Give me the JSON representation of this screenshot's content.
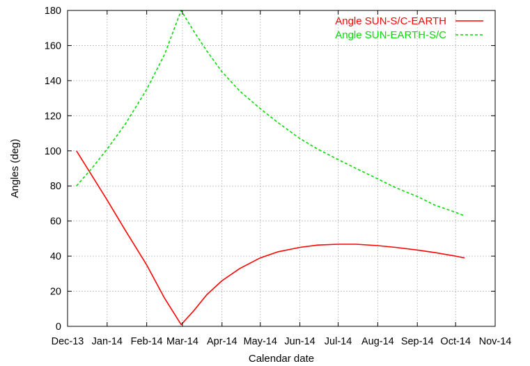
{
  "chart_data": {
    "type": "line",
    "xlabel": "Calendar date",
    "ylabel": "Angles (deg)",
    "x_ticks": [
      "Dec-13",
      "Jan-14",
      "Feb-14",
      "Mar-14",
      "Apr-14",
      "May-14",
      "Jun-14",
      "Jul-14",
      "Aug-14",
      "Sep-14",
      "Oct-14",
      "Nov-14"
    ],
    "xlim": [
      "2013-12-01",
      "2014-11-01"
    ],
    "ylim": [
      0,
      180
    ],
    "y_ticks": [
      0,
      20,
      40,
      60,
      80,
      100,
      120,
      140,
      160,
      180
    ],
    "grid": true,
    "legend_position": "top-right",
    "series": [
      {
        "name": "Angle SUN-S/C-EARTH",
        "color": "#ff0000",
        "line_style": "solid",
        "points": [
          [
            "2013-12-08",
            100
          ],
          [
            "2013-12-20",
            86
          ],
          [
            "2014-01-01",
            72
          ],
          [
            "2014-01-15",
            55
          ],
          [
            "2014-02-01",
            35
          ],
          [
            "2014-02-15",
            16
          ],
          [
            "2014-02-28",
            1
          ],
          [
            "2014-03-10",
            9
          ],
          [
            "2014-03-20",
            18
          ],
          [
            "2014-04-01",
            26
          ],
          [
            "2014-04-15",
            33
          ],
          [
            "2014-05-01",
            39
          ],
          [
            "2014-05-15",
            42.5
          ],
          [
            "2014-06-01",
            45
          ],
          [
            "2014-06-15",
            46.3
          ],
          [
            "2014-07-01",
            46.8
          ],
          [
            "2014-07-15",
            46.8
          ],
          [
            "2014-08-01",
            46
          ],
          [
            "2014-08-15",
            45
          ],
          [
            "2014-09-01",
            43.5
          ],
          [
            "2014-09-15",
            42
          ],
          [
            "2014-10-01",
            40
          ],
          [
            "2014-10-08",
            39
          ]
        ]
      },
      {
        "name": "Angle SUN-EARTH-S/C",
        "color": "#00dd00",
        "line_style": "dashed",
        "points": [
          [
            "2013-12-08",
            80
          ],
          [
            "2013-12-20",
            90
          ],
          [
            "2014-01-01",
            101
          ],
          [
            "2014-01-15",
            115
          ],
          [
            "2014-02-01",
            135
          ],
          [
            "2014-02-15",
            155
          ],
          [
            "2014-02-28",
            180
          ],
          [
            "2014-03-10",
            168
          ],
          [
            "2014-03-20",
            157
          ],
          [
            "2014-04-01",
            145
          ],
          [
            "2014-04-15",
            134
          ],
          [
            "2014-05-01",
            124
          ],
          [
            "2014-05-15",
            116
          ],
          [
            "2014-06-01",
            107
          ],
          [
            "2014-06-15",
            101
          ],
          [
            "2014-07-01",
            95
          ],
          [
            "2014-07-15",
            90
          ],
          [
            "2014-08-01",
            84
          ],
          [
            "2014-08-15",
            79
          ],
          [
            "2014-09-01",
            74
          ],
          [
            "2014-09-15",
            69
          ],
          [
            "2014-10-01",
            65
          ],
          [
            "2014-10-08",
            63
          ]
        ]
      }
    ]
  }
}
